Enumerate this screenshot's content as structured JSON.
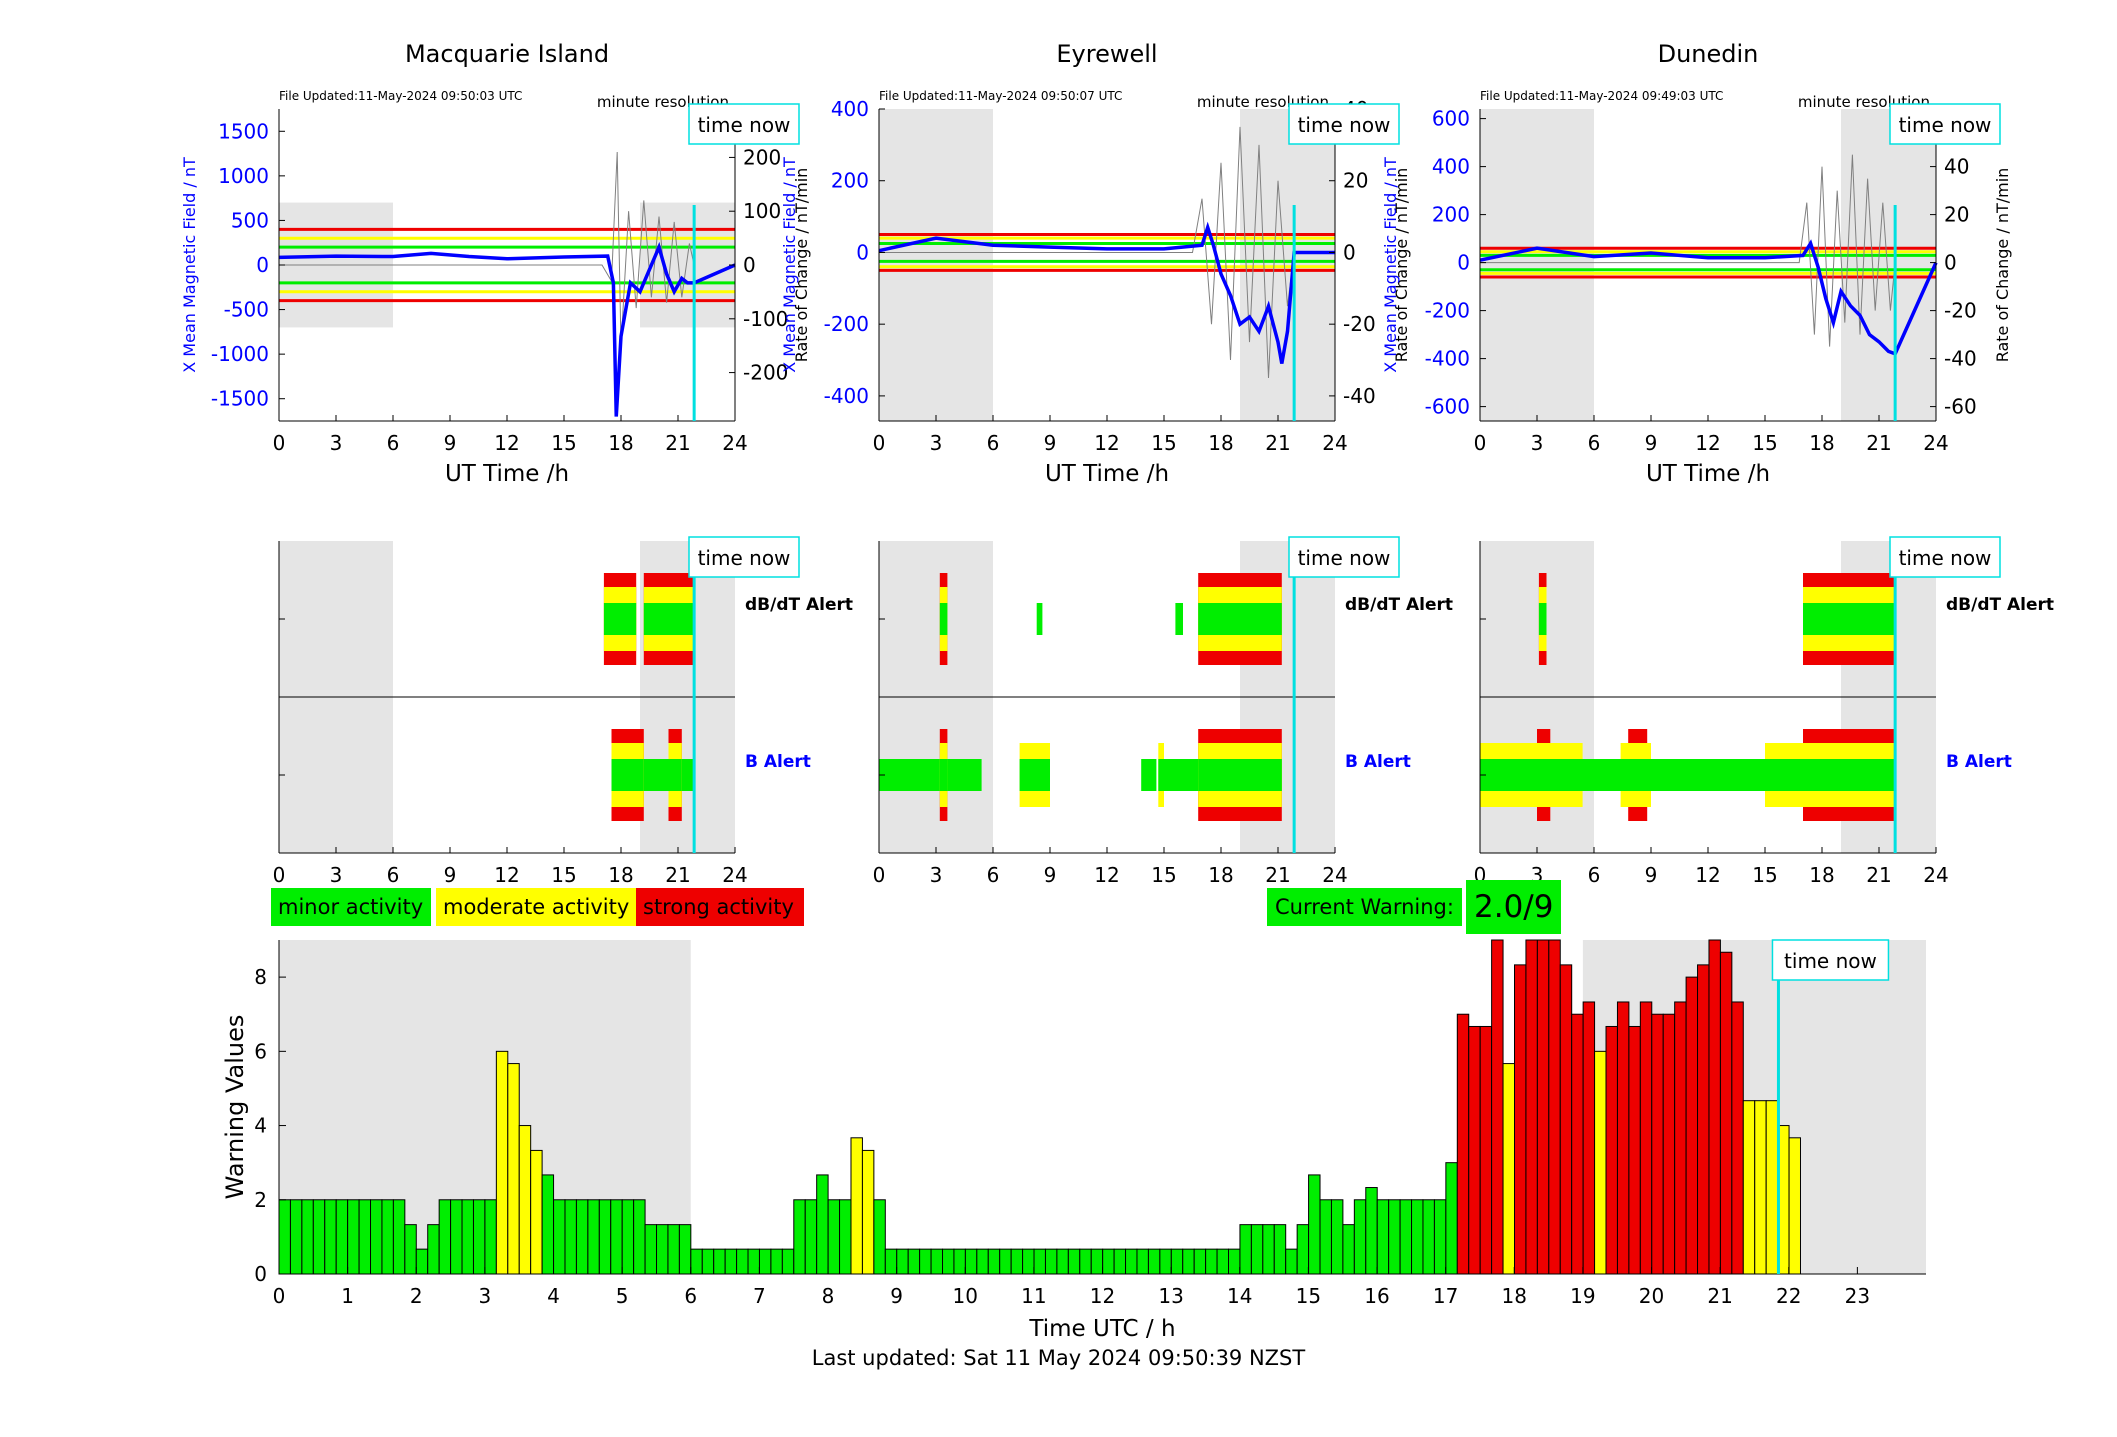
{
  "stations": [
    {
      "name": "Macquarie Island",
      "file_updated": "File Updated:11-May-2024 09:50:03 UTC",
      "resolution": "minute resolution",
      "time_now_label": "time now",
      "ylabel_left": "X Mean Magnetic Field / nT",
      "ylabel_right": "Rate of Change / nT/min",
      "xlabel": "UT Time /h",
      "ylim_left": [
        -1750,
        1750
      ],
      "yticks_left": [
        -1500,
        -1000,
        -500,
        0,
        500,
        1000,
        1500
      ],
      "ylim_right": [
        -290,
        290
      ],
      "yticks_right": [
        -200,
        -100,
        0,
        100,
        200
      ],
      "thresholds_left": [
        {
          "value": 400,
          "color": "#ee0000"
        },
        {
          "value": 300,
          "color": "#ffff00"
        },
        {
          "value": 200,
          "color": "#00ee00"
        },
        {
          "value": -200,
          "color": "#00ee00"
        },
        {
          "value": -300,
          "color": "#ffff00"
        },
        {
          "value": -400,
          "color": "#ee0000"
        }
      ],
      "shade_left": [
        0,
        6,
        -700,
        700
      ],
      "shade_right": [
        19,
        24,
        -700,
        700
      ],
      "time_now": 21.85,
      "field_series": [
        [
          0,
          85
        ],
        [
          3,
          100
        ],
        [
          6,
          95
        ],
        [
          8,
          130
        ],
        [
          10,
          95
        ],
        [
          12,
          70
        ],
        [
          15,
          90
        ],
        [
          17.3,
          100
        ],
        [
          17.6,
          -200
        ],
        [
          17.75,
          -1700
        ],
        [
          18,
          -800
        ],
        [
          18.5,
          -200
        ],
        [
          19,
          -300
        ],
        [
          19.5,
          -50
        ],
        [
          20,
          200
        ],
        [
          20.4,
          -100
        ],
        [
          20.8,
          -300
        ],
        [
          21.2,
          -150
        ],
        [
          21.5,
          -200
        ],
        [
          21.85,
          -200
        ],
        [
          24,
          0
        ]
      ],
      "roc_series": [
        [
          0,
          0
        ],
        [
          17,
          0
        ],
        [
          17.5,
          -30
        ],
        [
          17.8,
          210
        ],
        [
          18,
          -150
        ],
        [
          18.4,
          100
        ],
        [
          18.8,
          -80
        ],
        [
          19.2,
          120
        ],
        [
          19.6,
          -60
        ],
        [
          20,
          90
        ],
        [
          20.4,
          -70
        ],
        [
          20.8,
          80
        ],
        [
          21.2,
          -60
        ],
        [
          21.6,
          40
        ],
        [
          21.85,
          0
        ]
      ],
      "alert_label_top": "dB/dT Alert",
      "alert_label_bottom": "B Alert",
      "dbdt_alerts": [
        {
          "start": 17.1,
          "end": 18.8,
          "level": "strong"
        },
        {
          "start": 19.2,
          "end": 21.85,
          "level": "strong"
        }
      ],
      "b_alerts": [
        {
          "start": 17.5,
          "end": 19.2,
          "level": "strong"
        },
        {
          "start": 20.5,
          "end": 21.2,
          "level": "strong"
        },
        {
          "start": 19.2,
          "end": 20.5,
          "level": "minor"
        },
        {
          "start": 21.2,
          "end": 21.85,
          "level": "minor"
        }
      ]
    },
    {
      "name": "Eyrewell",
      "file_updated": "File Updated:11-May-2024 09:50:07 UTC",
      "resolution": "minute resolution",
      "time_now_label": "time now",
      "ylabel_left": "X Mean Magnetic Field / nT",
      "ylabel_right": "Rate of Change / nT/min",
      "xlabel": "UT Time /h",
      "ylim_left": [
        -470,
        400
      ],
      "yticks_left": [
        -400,
        -200,
        0,
        200,
        400
      ],
      "ylim_right": [
        -47,
        40
      ],
      "yticks_right": [
        -40,
        -20,
        0,
        20,
        40
      ],
      "thresholds_left": [
        {
          "value": 50,
          "color": "#ee0000"
        },
        {
          "value": 40,
          "color": "#ffff00"
        },
        {
          "value": 25,
          "color": "#00ee00"
        },
        {
          "value": -25,
          "color": "#00ee00"
        },
        {
          "value": -40,
          "color": "#ffff00"
        },
        {
          "value": -50,
          "color": "#ee0000"
        }
      ],
      "shade_left": [
        0,
        6,
        -470,
        400
      ],
      "shade_right": [
        19,
        24,
        -470,
        400
      ],
      "time_now": 21.85,
      "field_series": [
        [
          0,
          5
        ],
        [
          3,
          40
        ],
        [
          6,
          20
        ],
        [
          9,
          15
        ],
        [
          12,
          10
        ],
        [
          15,
          10
        ],
        [
          17,
          20
        ],
        [
          17.3,
          70
        ],
        [
          17.6,
          20
        ],
        [
          18,
          -60
        ],
        [
          18.5,
          -120
        ],
        [
          19,
          -200
        ],
        [
          19.5,
          -180
        ],
        [
          20,
          -220
        ],
        [
          20.5,
          -150
        ],
        [
          21,
          -250
        ],
        [
          21.2,
          -310
        ],
        [
          21.5,
          -220
        ],
        [
          21.85,
          0
        ],
        [
          24,
          0
        ]
      ],
      "roc_series": [
        [
          0,
          0
        ],
        [
          16.5,
          0
        ],
        [
          17,
          15
        ],
        [
          17.5,
          -20
        ],
        [
          18,
          25
        ],
        [
          18.5,
          -30
        ],
        [
          19,
          35
        ],
        [
          19.5,
          -25
        ],
        [
          20,
          30
        ],
        [
          20.5,
          -35
        ],
        [
          21,
          20
        ],
        [
          21.5,
          -15
        ],
        [
          21.85,
          0
        ]
      ],
      "alert_label_top": "dB/dT Alert",
      "alert_label_bottom": "B Alert",
      "dbdt_alerts": [
        {
          "start": 3.2,
          "end": 3.6,
          "level": "strong"
        },
        {
          "start": 8.3,
          "end": 8.6,
          "level": "minor"
        },
        {
          "start": 15.6,
          "end": 16,
          "level": "minor"
        },
        {
          "start": 16.8,
          "end": 21.2,
          "level": "strong"
        }
      ],
      "b_alerts": [
        {
          "start": 0,
          "end": 5.4,
          "level": "minor"
        },
        {
          "start": 3.2,
          "end": 3.6,
          "level": "strong"
        },
        {
          "start": 7.4,
          "end": 9,
          "level": "moderate"
        },
        {
          "start": 13.8,
          "end": 14.6,
          "level": "minor"
        },
        {
          "start": 14.7,
          "end": 15,
          "level": "moderate"
        },
        {
          "start": 15,
          "end": 21.2,
          "level": "minor"
        },
        {
          "start": 16.8,
          "end": 21.2,
          "level": "strong"
        }
      ]
    },
    {
      "name": "Dunedin",
      "file_updated": "File Updated:11-May-2024 09:49:03 UTC",
      "resolution": "minute resolution",
      "time_now_label": "time now",
      "ylabel_left": "X Mean Magnetic Field / nT",
      "ylabel_right": "Rate of Change / nT/min",
      "xlabel": "UT Time /h",
      "ylim_left": [
        -660,
        640
      ],
      "yticks_left": [
        -600,
        -400,
        -200,
        0,
        200,
        400,
        600
      ],
      "ylim_right": [
        -66,
        64
      ],
      "yticks_right": [
        -60,
        -40,
        -20,
        0,
        20,
        40,
        60
      ],
      "thresholds_left": [
        {
          "value": 60,
          "color": "#ee0000"
        },
        {
          "value": 45,
          "color": "#ffff00"
        },
        {
          "value": 30,
          "color": "#00ee00"
        },
        {
          "value": -30,
          "color": "#00ee00"
        },
        {
          "value": -45,
          "color": "#ffff00"
        },
        {
          "value": -60,
          "color": "#ee0000"
        }
      ],
      "shade_left": [
        0,
        6,
        -660,
        640
      ],
      "shade_right": [
        19,
        24,
        -660,
        640
      ],
      "time_now": 21.85,
      "field_series": [
        [
          0,
          10
        ],
        [
          3,
          60
        ],
        [
          6,
          25
        ],
        [
          9,
          40
        ],
        [
          12,
          20
        ],
        [
          15,
          20
        ],
        [
          17,
          30
        ],
        [
          17.4,
          80
        ],
        [
          17.8,
          -20
        ],
        [
          18.2,
          -150
        ],
        [
          18.6,
          -250
        ],
        [
          19,
          -120
        ],
        [
          19.5,
          -180
        ],
        [
          20,
          -220
        ],
        [
          20.5,
          -300
        ],
        [
          21,
          -330
        ],
        [
          21.5,
          -370
        ],
        [
          21.85,
          -380
        ],
        [
          24,
          0
        ]
      ],
      "roc_series": [
        [
          0,
          0
        ],
        [
          16.8,
          0
        ],
        [
          17.2,
          25
        ],
        [
          17.6,
          -30
        ],
        [
          18,
          40
        ],
        [
          18.4,
          -35
        ],
        [
          18.8,
          30
        ],
        [
          19.2,
          -25
        ],
        [
          19.6,
          45
        ],
        [
          20,
          -30
        ],
        [
          20.4,
          35
        ],
        [
          20.8,
          -20
        ],
        [
          21.2,
          25
        ],
        [
          21.6,
          -20
        ],
        [
          21.85,
          0
        ]
      ],
      "alert_label_top": "dB/dT Alert",
      "alert_label_bottom": "B Alert",
      "dbdt_alerts": [
        {
          "start": 3.1,
          "end": 3.5,
          "level": "strong"
        },
        {
          "start": 17,
          "end": 21.9,
          "level": "strong"
        }
      ],
      "b_alerts": [
        {
          "start": 0,
          "end": 21.9,
          "level": "minor"
        },
        {
          "start": 0,
          "end": 5.4,
          "level": "moderate"
        },
        {
          "start": 7.4,
          "end": 9,
          "level": "moderate"
        },
        {
          "start": 15,
          "end": 21.9,
          "level": "moderate"
        },
        {
          "start": 3,
          "end": 3.7,
          "level": "strong"
        },
        {
          "start": 7.8,
          "end": 8.8,
          "level": "strong"
        },
        {
          "start": 17,
          "end": 21.9,
          "level": "strong"
        }
      ]
    }
  ],
  "legend": [
    {
      "label": "minor activity",
      "color": "#00ee00"
    },
    {
      "label": "moderate activity",
      "color": "#ffff00"
    },
    {
      "label": "strong activity",
      "color": "#ee0000"
    }
  ],
  "current_warning": {
    "label": "Current Warning:",
    "value": "2.0/9"
  },
  "footer": "Last updated: Sat 11 May 2024 09:50:39 NZST",
  "colors": {
    "minor": "#00ee00",
    "moderate": "#ffff00",
    "strong": "#ee0000",
    "field": "#0000ff",
    "time_now": "#00e0e0",
    "shade": "#e5e5e5"
  },
  "chart_data": {
    "type": "bar",
    "xlabel": "Time UTC / h",
    "ylabel": "Warning Values",
    "xlim": [
      0,
      24
    ],
    "ylim": [
      0,
      9
    ],
    "xticks": [
      0,
      1,
      2,
      3,
      4,
      5,
      6,
      7,
      8,
      9,
      10,
      11,
      12,
      13,
      14,
      15,
      16,
      17,
      18,
      19,
      20,
      21,
      22,
      23
    ],
    "yticks": [
      0,
      2,
      4,
      6,
      8
    ],
    "time_now": 21.85,
    "time_now_label": "time now",
    "shaded_ranges": [
      [
        0,
        6
      ],
      [
        19,
        24
      ]
    ],
    "bin_hours": 0.1667,
    "values": [
      2,
      2,
      2,
      2,
      2,
      2,
      2,
      2,
      2,
      2,
      2,
      1.33,
      0.67,
      1.33,
      2,
      2,
      2,
      2,
      2,
      6,
      5.67,
      4,
      3.33,
      2.67,
      2,
      2,
      2,
      2,
      2,
      2,
      2,
      2,
      1.33,
      1.33,
      1.33,
      1.33,
      0.67,
      0.67,
      0.67,
      0.67,
      0.67,
      0.67,
      0.67,
      0.67,
      0.67,
      2,
      2,
      2.67,
      2,
      2,
      3.67,
      3.33,
      2,
      0.67,
      0.67,
      0.67,
      0.67,
      0.67,
      0.67,
      0.67,
      0.67,
      0.67,
      0.67,
      0.67,
      0.67,
      0.67,
      0.67,
      0.67,
      0.67,
      0.67,
      0.67,
      0.67,
      0.67,
      0.67,
      0.67,
      0.67,
      0.67,
      0.67,
      0.67,
      0.67,
      0.67,
      0.67,
      0.67,
      0.67,
      1.33,
      1.33,
      1.33,
      1.33,
      0.67,
      1.33,
      2.67,
      2,
      2,
      1.33,
      2,
      2.33,
      2,
      2,
      2,
      2,
      2,
      2,
      3,
      7,
      6.67,
      6.67,
      9,
      5.67,
      8.33,
      9,
      9,
      9,
      8.33,
      7,
      7.33,
      6,
      6.67,
      7.33,
      6.67,
      7.33,
      7,
      7,
      7.33,
      8,
      8.33,
      9,
      8.67,
      7.33,
      4.67,
      4.67,
      4.67,
      4,
      3.67
    ],
    "levels": [
      "minor",
      "minor",
      "minor",
      "minor",
      "minor",
      "minor",
      "minor",
      "minor",
      "minor",
      "minor",
      "minor",
      "minor",
      "minor",
      "minor",
      "minor",
      "minor",
      "minor",
      "minor",
      "minor",
      "moderate",
      "moderate",
      "moderate",
      "moderate",
      "minor",
      "minor",
      "minor",
      "minor",
      "minor",
      "minor",
      "minor",
      "minor",
      "minor",
      "minor",
      "minor",
      "minor",
      "minor",
      "minor",
      "minor",
      "minor",
      "minor",
      "minor",
      "minor",
      "minor",
      "minor",
      "minor",
      "minor",
      "minor",
      "minor",
      "minor",
      "minor",
      "moderate",
      "moderate",
      "minor",
      "minor",
      "minor",
      "minor",
      "minor",
      "minor",
      "minor",
      "minor",
      "minor",
      "minor",
      "minor",
      "minor",
      "minor",
      "minor",
      "minor",
      "minor",
      "minor",
      "minor",
      "minor",
      "minor",
      "minor",
      "minor",
      "minor",
      "minor",
      "minor",
      "minor",
      "minor",
      "minor",
      "minor",
      "minor",
      "minor",
      "minor",
      "minor",
      "minor",
      "minor",
      "minor",
      "minor",
      "minor",
      "minor",
      "minor",
      "minor",
      "minor",
      "minor",
      "minor",
      "minor",
      "minor",
      "minor",
      "minor",
      "minor",
      "minor",
      "minor",
      "strong",
      "strong",
      "strong",
      "strong",
      "moderate",
      "strong",
      "strong",
      "strong",
      "strong",
      "strong",
      "strong",
      "strong",
      "moderate",
      "strong",
      "strong",
      "strong",
      "strong",
      "strong",
      "strong",
      "strong",
      "strong",
      "strong",
      "strong",
      "strong",
      "strong",
      "moderate",
      "moderate",
      "moderate",
      "moderate",
      "moderate"
    ]
  }
}
